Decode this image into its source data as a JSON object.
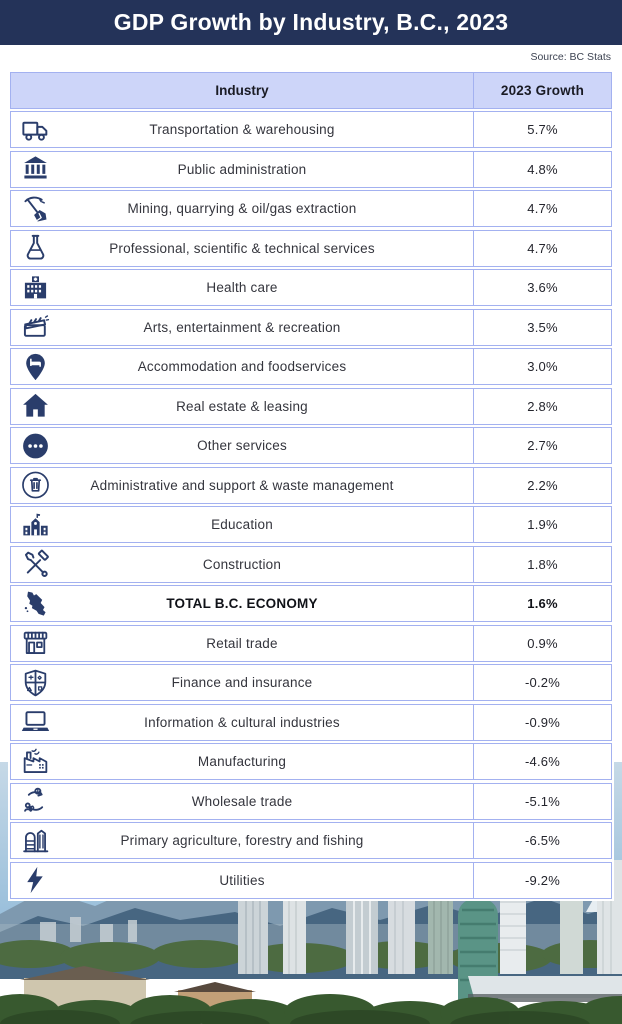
{
  "header": {
    "title": "GDP Growth by Industry, B.C., 2023"
  },
  "source": "Source: BC Stats",
  "table": {
    "columns": [
      "Industry",
      "2023 Growth"
    ],
    "rows": [
      {
        "icon": "truck-icon",
        "label": "Transportation & warehousing",
        "value": "5.7%"
      },
      {
        "icon": "bank-icon",
        "label": "Public administration",
        "value": "4.8%"
      },
      {
        "icon": "pickaxe-icon",
        "label": "Mining, quarrying & oil/gas extraction",
        "value": "4.7%"
      },
      {
        "icon": "flask-icon",
        "label": "Professional, scientific & technical services",
        "value": "4.7%"
      },
      {
        "icon": "hospital-icon",
        "label": "Health care",
        "value": "3.6%"
      },
      {
        "icon": "clapperboard-icon",
        "label": "Arts, entertainment & recreation",
        "value": "3.5%"
      },
      {
        "icon": "pin-bed-icon",
        "label": "Accommodation and foodservices",
        "value": "3.0%"
      },
      {
        "icon": "house-icon",
        "label": "Real estate & leasing",
        "value": "2.8%"
      },
      {
        "icon": "ellipsis-icon",
        "label": "Other services",
        "value": "2.7%"
      },
      {
        "icon": "trash-icon",
        "label": "Administrative and support & waste management",
        "value": "2.2%"
      },
      {
        "icon": "school-icon",
        "label": "Education",
        "value": "1.9%"
      },
      {
        "icon": "tools-icon",
        "label": "Construction",
        "value": "1.8%"
      },
      {
        "icon": "bc-map-icon",
        "label": "TOTAL B.C. ECONOMY",
        "value": "1.6%",
        "bold": true
      },
      {
        "icon": "storefront-icon",
        "label": "Retail trade",
        "value": "0.9%"
      },
      {
        "icon": "shield-icon",
        "label": "Finance and insurance",
        "value": "-0.2%"
      },
      {
        "icon": "laptop-icon",
        "label": "Information & cultural industries",
        "value": "-0.9%"
      },
      {
        "icon": "factory-icon",
        "label": "Manufacturing",
        "value": "-4.6%"
      },
      {
        "icon": "exchange-icon",
        "label": "Wholesale trade",
        "value": "-5.1%"
      },
      {
        "icon": "silo-icon",
        "label": "Primary agriculture, forestry and fishing",
        "value": "-6.5%"
      },
      {
        "icon": "lightning-icon",
        "label": "Utilities",
        "value": "-9.2%"
      }
    ]
  },
  "chart_data": {
    "type": "table",
    "title": "GDP Growth by Industry, B.C., 2023",
    "source": "Source: BC Stats",
    "columns": [
      "Industry",
      "2023 Growth"
    ],
    "categories": [
      "Transportation & warehousing",
      "Public administration",
      "Mining, quarrying & oil/gas extraction",
      "Professional, scientific & technical services",
      "Health care",
      "Arts, entertainment & recreation",
      "Accommodation and foodservices",
      "Real estate & leasing",
      "Other services",
      "Administrative and support & waste management",
      "Education",
      "Construction",
      "TOTAL B.C. ECONOMY",
      "Retail trade",
      "Finance and insurance",
      "Information & cultural industries",
      "Manufacturing",
      "Wholesale trade",
      "Primary agriculture, forestry and fishing",
      "Utilities"
    ],
    "values": [
      5.7,
      4.8,
      4.7,
      4.7,
      3.6,
      3.5,
      3.0,
      2.8,
      2.7,
      2.2,
      1.9,
      1.8,
      1.6,
      0.9,
      -0.2,
      -0.9,
      -4.6,
      -5.1,
      -6.5,
      -9.2
    ],
    "unit": "%"
  },
  "colors": {
    "navy": "#243359",
    "table_border": "#a3b1f0",
    "header_row_bg": "#cdd5f9",
    "icon_navy": "#2a3d6b"
  }
}
